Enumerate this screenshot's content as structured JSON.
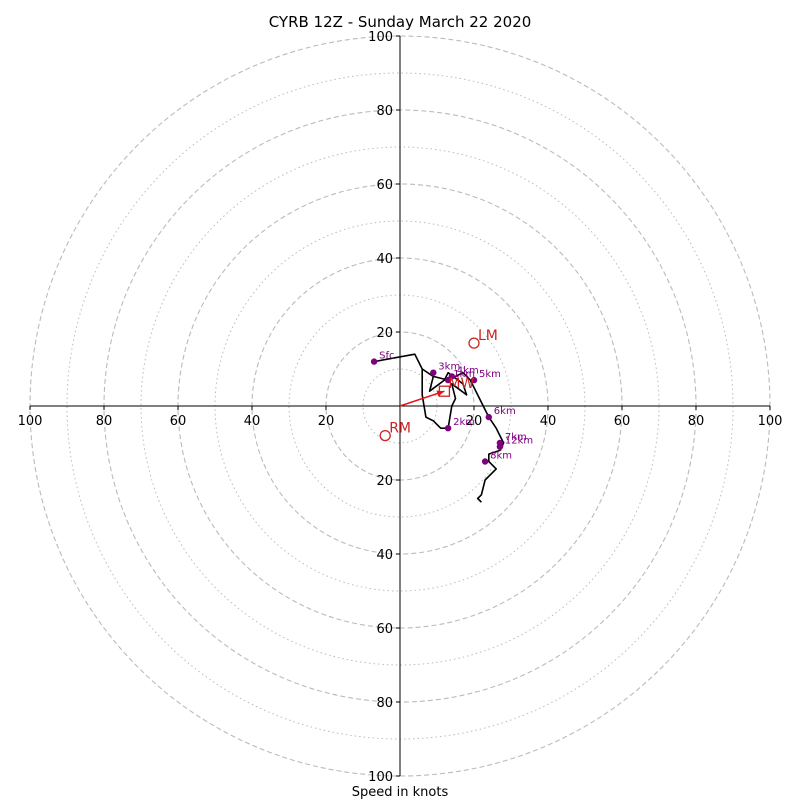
{
  "chart_data": {
    "type": "hodograph",
    "title": "CYRB 12Z - Sunday March 22 2020",
    "xlabel": "Speed in knots",
    "range": 100,
    "ring_major": [
      20,
      40,
      60,
      80,
      100
    ],
    "ring_minor": [
      10,
      30,
      50,
      70,
      90
    ],
    "x_ticks": [
      "100",
      "80",
      "60",
      "40",
      "20",
      "20",
      "40",
      "60",
      "80",
      "100"
    ],
    "x_tick_values": [
      -100,
      -80,
      -60,
      -40,
      -20,
      20,
      40,
      60,
      80,
      100
    ],
    "y_ticks": [
      "100",
      "80",
      "60",
      "40",
      "20",
      "20",
      "40",
      "60",
      "80",
      "100"
    ],
    "y_tick_values": [
      100,
      80,
      60,
      40,
      20,
      -20,
      -40,
      -60,
      -80,
      -100
    ],
    "hodograph_path": [
      [
        -7,
        12
      ],
      [
        4,
        14
      ],
      [
        6,
        10
      ],
      [
        9,
        8
      ],
      [
        8,
        4
      ],
      [
        12,
        7
      ],
      [
        13,
        9
      ],
      [
        17,
        6
      ],
      [
        18,
        3
      ],
      [
        14,
        6
      ],
      [
        15,
        2
      ],
      [
        14,
        0
      ],
      [
        13,
        -6
      ],
      [
        11,
        -6
      ],
      [
        9,
        -4
      ],
      [
        7,
        -3
      ],
      [
        6,
        3
      ],
      [
        6,
        10
      ],
      [
        9,
        8
      ],
      [
        13,
        7
      ],
      [
        15,
        8
      ],
      [
        17,
        9
      ],
      [
        19,
        7
      ],
      [
        24,
        -3
      ],
      [
        26,
        -6
      ],
      [
        27,
        -8
      ],
      [
        28,
        -10
      ],
      [
        27,
        -12
      ],
      [
        24,
        -13
      ],
      [
        24,
        -15
      ],
      [
        25,
        -16
      ],
      [
        26,
        -17
      ],
      [
        23,
        -20
      ],
      [
        22,
        -24
      ],
      [
        21,
        -25
      ],
      [
        22,
        -26
      ]
    ],
    "height_markers": [
      {
        "label": "Sfc",
        "u": -7,
        "v": 12
      },
      {
        "label": "1km",
        "u": 13,
        "v": 7
      },
      {
        "label": "2km",
        "u": 13,
        "v": -6
      },
      {
        "label": "3km",
        "u": 9,
        "v": 9
      },
      {
        "label": "4km",
        "u": 14,
        "v": 8
      },
      {
        "label": "5km",
        "u": 20,
        "v": 7
      },
      {
        "label": "6km",
        "u": 24,
        "v": -3
      },
      {
        "label": "7km",
        "u": 27,
        "v": -10
      },
      {
        "label": "8km",
        "u": 23,
        "v": -15
      },
      {
        "label": "12km",
        "u": 27,
        "v": -11
      }
    ],
    "storm_markers": [
      {
        "label": "LM",
        "u": 20,
        "v": 17,
        "shape": "circle"
      },
      {
        "label": "RM",
        "u": -4,
        "v": -8,
        "shape": "circle"
      },
      {
        "label": "MW",
        "u": 12,
        "v": 4,
        "shape": "square"
      }
    ],
    "bunkers_vector": {
      "from": [
        0,
        0
      ],
      "to": [
        12,
        4
      ]
    },
    "colors": {
      "hodograph": "#000000",
      "markers": "#800080",
      "storm": "#cc2222",
      "rings": "#bbbbbb"
    },
    "grid": true
  }
}
